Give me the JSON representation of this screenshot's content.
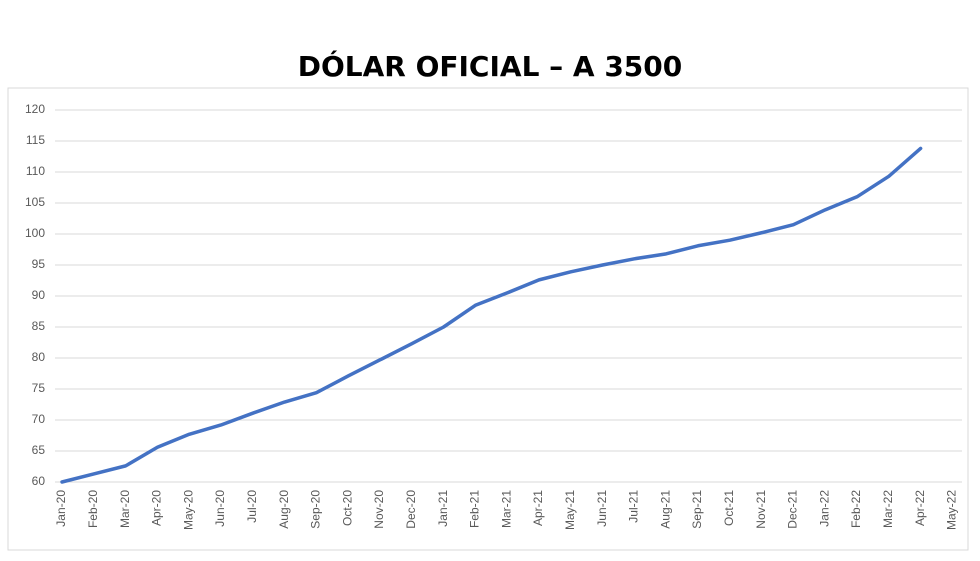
{
  "chart_data": {
    "type": "line",
    "title": "DÓLAR OFICIAL – A 3500",
    "categories": [
      "Jan-20",
      "Feb-20",
      "Mar-20",
      "Apr-20",
      "May-20",
      "Jun-20",
      "Jul-20",
      "Aug-20",
      "Sep-20",
      "Oct-20",
      "Nov-20",
      "Dec-20",
      "Jan-21",
      "Feb-21",
      "Mar-21",
      "Apr-21",
      "May-21",
      "Jun-21",
      "Jul-21",
      "Aug-21",
      "Sep-21",
      "Oct-21",
      "Nov-21",
      "Dec-21",
      "Jan-22",
      "Feb-22",
      "Mar-22",
      "Apr-22",
      "May-22"
    ],
    "series": [
      {
        "color": "#4472c4",
        "values": [
          60.0,
          61.3,
          62.6,
          65.6,
          67.7,
          69.2,
          71.1,
          72.9,
          74.4,
          77.1,
          79.7,
          82.3,
          85.0,
          88.5,
          90.5,
          92.6,
          93.9,
          95.0,
          96.0,
          96.8,
          98.1,
          99.0,
          100.2,
          101.5,
          103.9,
          106.0,
          109.3,
          113.8,
          null
        ]
      }
    ],
    "ylim": [
      60,
      120
    ],
    "yticks": [
      60,
      65,
      70,
      75,
      80,
      85,
      90,
      95,
      100,
      105,
      110,
      115,
      120
    ],
    "grid": true
  }
}
